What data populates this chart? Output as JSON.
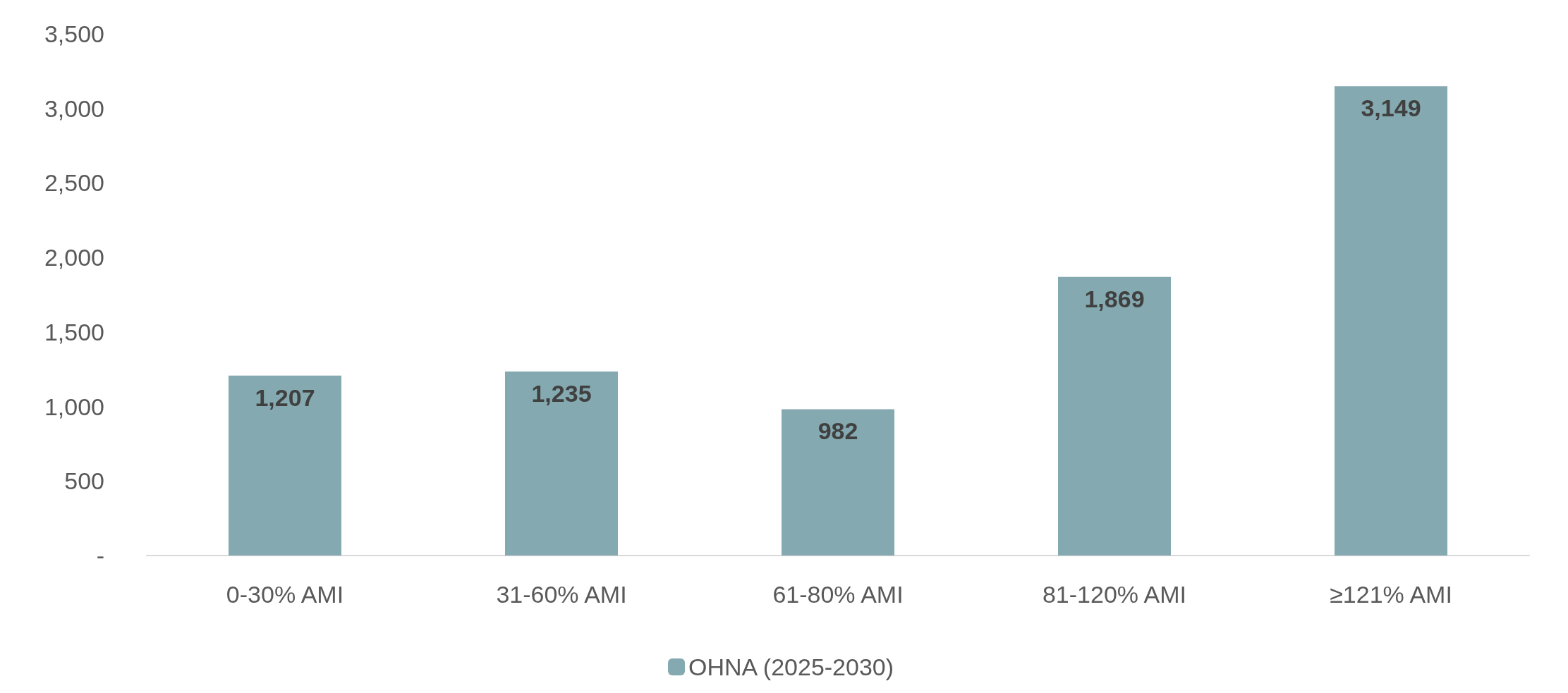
{
  "chart_data": {
    "type": "bar",
    "categories": [
      "0-30% AMI",
      "31-60% AMI",
      "61-80% AMI",
      "81-120% AMI",
      "≥121% AMI"
    ],
    "series": [
      {
        "name": "OHNA (2025-2030)",
        "color": "#84a9b0",
        "values": [
          1207,
          1235,
          982,
          1869,
          3149
        ]
      }
    ],
    "ylim": [
      0,
      3500
    ],
    "yticks": [
      {
        "value": 0,
        "label": "-"
      },
      {
        "value": 500,
        "label": "500"
      },
      {
        "value": 1000,
        "label": "1,000"
      },
      {
        "value": 1500,
        "label": "1,500"
      },
      {
        "value": 2000,
        "label": "2,000"
      },
      {
        "value": 2500,
        "label": "2,500"
      },
      {
        "value": 3000,
        "label": "3,000"
      },
      {
        "value": 3500,
        "label": "3,500"
      }
    ],
    "value_labels": [
      "1,207",
      "1,235",
      "982",
      "1,869",
      "3,149"
    ],
    "grid": false,
    "legend": "bottom"
  }
}
